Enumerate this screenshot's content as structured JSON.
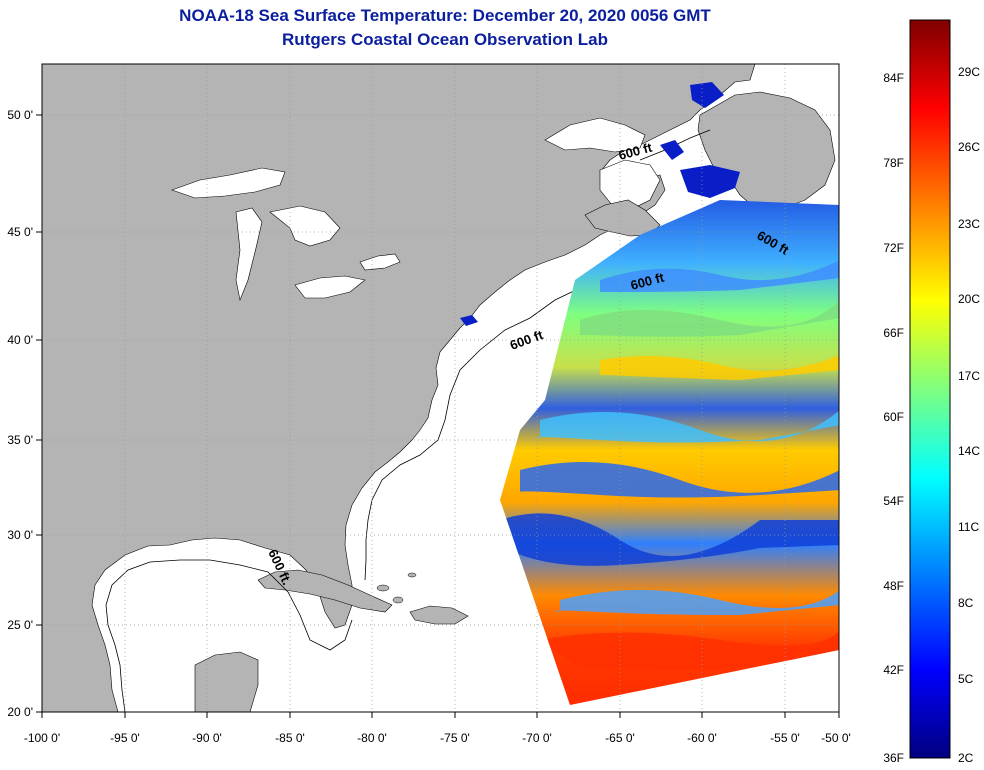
{
  "header": {
    "title_line1": "NOAA-18 Sea Surface Temperature:  December 20, 2020 0056 GMT",
    "title_line2": "Rutgers Coastal Ocean Observation Lab"
  },
  "map": {
    "lon_labels": [
      "-100 0'",
      "-95 0'",
      "-90 0'",
      "-85 0'",
      "-80 0'",
      "-75 0'",
      "-70 0'",
      "-65 0'",
      "-60 0'",
      "-55 0'",
      "-50 0'"
    ],
    "lat_labels": [
      "20 0'",
      "25 0'",
      "30 0'",
      "35 0'",
      "40 0'",
      "45 0'",
      "50 0'"
    ],
    "contour_label": "600 ft",
    "contour_label_gulf": "600 ft.",
    "colors": {
      "land": "#b4b4b4",
      "ocean_nodata": "#ffffff",
      "grid": "#888888"
    }
  },
  "colorbar": {
    "fahrenheit_labels": [
      "84F",
      "78F",
      "72F",
      "66F",
      "60F",
      "54F",
      "48F",
      "42F",
      "36F"
    ],
    "celsius_labels": [
      "29C",
      "26C",
      "23C",
      "20C",
      "17C",
      "14C",
      "11C",
      "8C",
      "5C",
      "2C"
    ],
    "gradient_colors": [
      "#7f0000",
      "#ff0000",
      "#ff7f00",
      "#ffff00",
      "#7fff7f",
      "#00ffff",
      "#007fff",
      "#0000ff",
      "#00007f"
    ]
  }
}
